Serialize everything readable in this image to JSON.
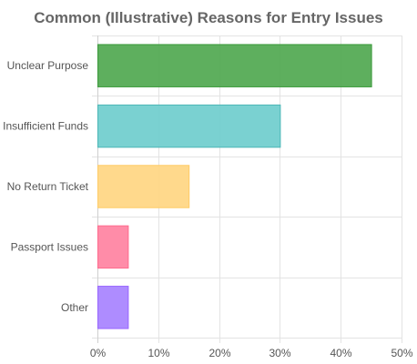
{
  "chart_data": {
    "type": "bar",
    "orientation": "horizontal",
    "title": "Common (Illustrative) Reasons for Entry Issues",
    "categories": [
      "Unclear Purpose",
      "Insufficient Funds",
      "No Return Ticket",
      "Passport Issues",
      "Other"
    ],
    "values": [
      45,
      30,
      15,
      5,
      5
    ],
    "colors": [
      "#4ca64c",
      "#6ccccc",
      "#ffd57f",
      "#ff7f9f",
      "#a57fff"
    ],
    "border_colors": [
      "#3a9a3a",
      "#4bb6b6",
      "#ffcc66",
      "#ff6b8d",
      "#9966ff"
    ],
    "xlim": [
      0,
      50
    ],
    "x_ticks": [
      0,
      10,
      20,
      30,
      40,
      50
    ],
    "x_tick_suffix": "%",
    "grid": true,
    "legend": "none"
  }
}
